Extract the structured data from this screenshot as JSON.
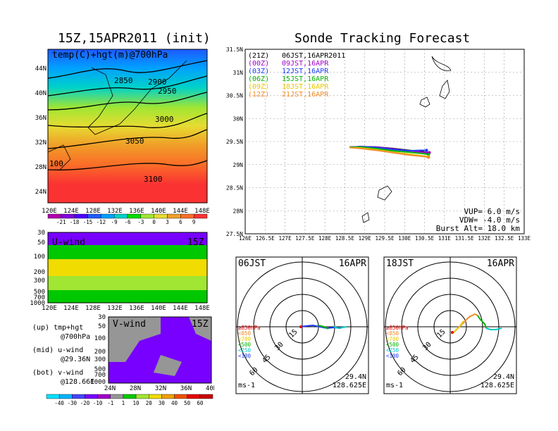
{
  "map_panel": {
    "title": "15Z,15APR2011 (init)",
    "field_label": "temp(C)+hgt(m)@700hPa",
    "lat_ticks": [
      "44N",
      "40N",
      "36N",
      "32N",
      "28N",
      "24N"
    ],
    "lon_ticks": [
      "120E",
      "124E",
      "128E",
      "132E",
      "136E",
      "140E",
      "144E",
      "148E"
    ],
    "contour_labels": [
      "2850",
      "2900",
      "2950",
      "3000",
      "3050",
      "100",
      "3100"
    ],
    "colorbar_labels": [
      "-21",
      "-18",
      "-15",
      "-12",
      "-9",
      "-6",
      "-3",
      "0",
      "3",
      "6",
      "9"
    ],
    "colorbar_colors": [
      "#b000b0",
      "#8200dc",
      "#4a00ff",
      "#1e5aff",
      "#00a0ff",
      "#00d2c8",
      "#00dc00",
      "#a0e632",
      "#e6dc32",
      "#f0a028",
      "#fa6e28",
      "#fa3232"
    ]
  },
  "uwind_panel": {
    "title": "U-wind",
    "time": "15Z",
    "p_ticks": [
      "30",
      "50",
      "100",
      "200",
      "300",
      "500",
      "700",
      "1000"
    ],
    "lon_ticks": [
      "120E",
      "124E",
      "128E",
      "132E",
      "136E",
      "140E",
      "144E",
      "148E"
    ]
  },
  "vwind_panel": {
    "title": "V-wind",
    "time": "15Z",
    "p_ticks": [
      "30",
      "50",
      "100",
      "200",
      "300",
      "500",
      "700",
      "1000"
    ],
    "lat_ticks": [
      "24N",
      "28N",
      "32N",
      "36N",
      "40N"
    ]
  },
  "legend_text": {
    "up": "(up) tmp+hgt",
    "up2": "@700hPa",
    "mid": "(mid) u-wind",
    "mid2": "@29.36N",
    "bot": "(bot) v-wind",
    "bot2": "@128.66E"
  },
  "wind_colorbar": {
    "labels": [
      "-40",
      "-30",
      "-20",
      "-10",
      "-1",
      "1",
      "10",
      "20",
      "30",
      "40",
      "50",
      "60"
    ],
    "colors": [
      "#00e0ff",
      "#00b4ff",
      "#4646ff",
      "#7800ff",
      "#a000c8",
      "#969696",
      "#00c800",
      "#a0e632",
      "#f0dc00",
      "#f0a000",
      "#f05000",
      "#e60000",
      "#c80000"
    ]
  },
  "tracking_panel": {
    "title": "Sonde Tracking Forecast",
    "entries": [
      {
        "code": "(21Z)",
        "text": "06JST,16APR2011",
        "color": "#000000"
      },
      {
        "code": "(00Z)",
        "text": "09JST,16APR",
        "color": "#a000c8"
      },
      {
        "code": "(03Z)",
        "text": "12JST,16APR",
        "color": "#1e3cff"
      },
      {
        "code": "(06Z)",
        "text": "15JST,16APR",
        "color": "#00b400"
      },
      {
        "code": "(09Z)",
        "text": "18JST,16APR",
        "color": "#e6c800"
      },
      {
        "code": "(12Z)",
        "text": "21JST,16APR",
        "color": "#f08c28"
      }
    ],
    "lat_ticks": [
      "31.5N",
      "31N",
      "30.5N",
      "30N",
      "29.5N",
      "29N",
      "28.5N",
      "28N",
      "27.5N"
    ],
    "lon_ticks": [
      "126E",
      "126.5E",
      "127E",
      "127.5E",
      "128E",
      "128.5E",
      "129E",
      "129.5E",
      "130E",
      "130.5E",
      "131E",
      "131.5E",
      "132E",
      "132.5E",
      "133E"
    ],
    "vup": "VUP= 6.0 m/s",
    "vdw": "VDW= -4.0 m/s",
    "burst": "Burst Alt= 18.0 km"
  },
  "polar_left": {
    "time": "06JST",
    "date": "16APR",
    "lat": "29.4N",
    "lon": "128.625E",
    "unit": "ms-1",
    "rings": [
      "15",
      "30",
      "45",
      "60"
    ]
  },
  "polar_right": {
    "time": "18JST",
    "date": "16APR",
    "lat": "29.4N",
    "lon": "128.625E",
    "unit": "ms-1",
    "rings": [
      "15",
      "30",
      "45",
      "60"
    ]
  },
  "polar_legend": [
    {
      "text": "≥850hPa",
      "color": "#e60000"
    },
    {
      "text": "<850",
      "color": "#f08c28"
    },
    {
      "text": "<700",
      "color": "#e6c800"
    },
    {
      "text": "<500",
      "color": "#00b400"
    },
    {
      "text": "<250",
      "color": "#00c8c8"
    },
    {
      "text": "<100",
      "color": "#1e3cff"
    }
  ],
  "chart_data": {
    "type": "line",
    "title": "Sonde Tracking Forecast",
    "xlim": [
      126,
      133
    ],
    "ylim": [
      27.5,
      31.5
    ],
    "series": [
      {
        "name": "(21Z) 06JST,16APR2011",
        "x": [
          128.62,
          128.9,
          129.3,
          129.7,
          130.1,
          130.45,
          130.6
        ],
        "y": [
          29.38,
          29.39,
          29.38,
          29.35,
          29.31,
          29.28,
          29.25
        ]
      },
      {
        "name": "(00Z) 09JST,16APR",
        "x": [
          128.62,
          128.9,
          129.3,
          129.7,
          130.1,
          130.45,
          130.62
        ],
        "y": [
          29.38,
          29.39,
          29.38,
          29.34,
          29.3,
          29.27,
          29.26
        ]
      },
      {
        "name": "(03Z) 12JST,16APR",
        "x": [
          128.62,
          128.9,
          129.3,
          129.7,
          130.1,
          130.4,
          130.55
        ],
        "y": [
          29.38,
          29.39,
          29.37,
          29.33,
          29.3,
          29.31,
          29.31
        ]
      },
      {
        "name": "(06Z) 15JST,16APR",
        "x": [
          128.62,
          128.9,
          129.3,
          129.7,
          130.1,
          130.45,
          130.6
        ],
        "y": [
          29.38,
          29.38,
          29.35,
          29.3,
          29.27,
          29.24,
          29.22
        ]
      },
      {
        "name": "(09Z) 18JST,16APR",
        "x": [
          128.62,
          128.9,
          129.3,
          129.7,
          130.1,
          130.45,
          130.6
        ],
        "y": [
          29.37,
          29.36,
          29.32,
          29.27,
          29.23,
          29.19,
          29.17
        ]
      },
      {
        "name": "(12Z) 21JST,16APR",
        "x": [
          128.62,
          128.9,
          129.3,
          129.7,
          130.1,
          130.45,
          130.6
        ],
        "y": [
          29.37,
          29.35,
          29.31,
          29.26,
          29.21,
          29.18,
          29.16
        ]
      }
    ],
    "legend": "top-left",
    "grid": true
  }
}
